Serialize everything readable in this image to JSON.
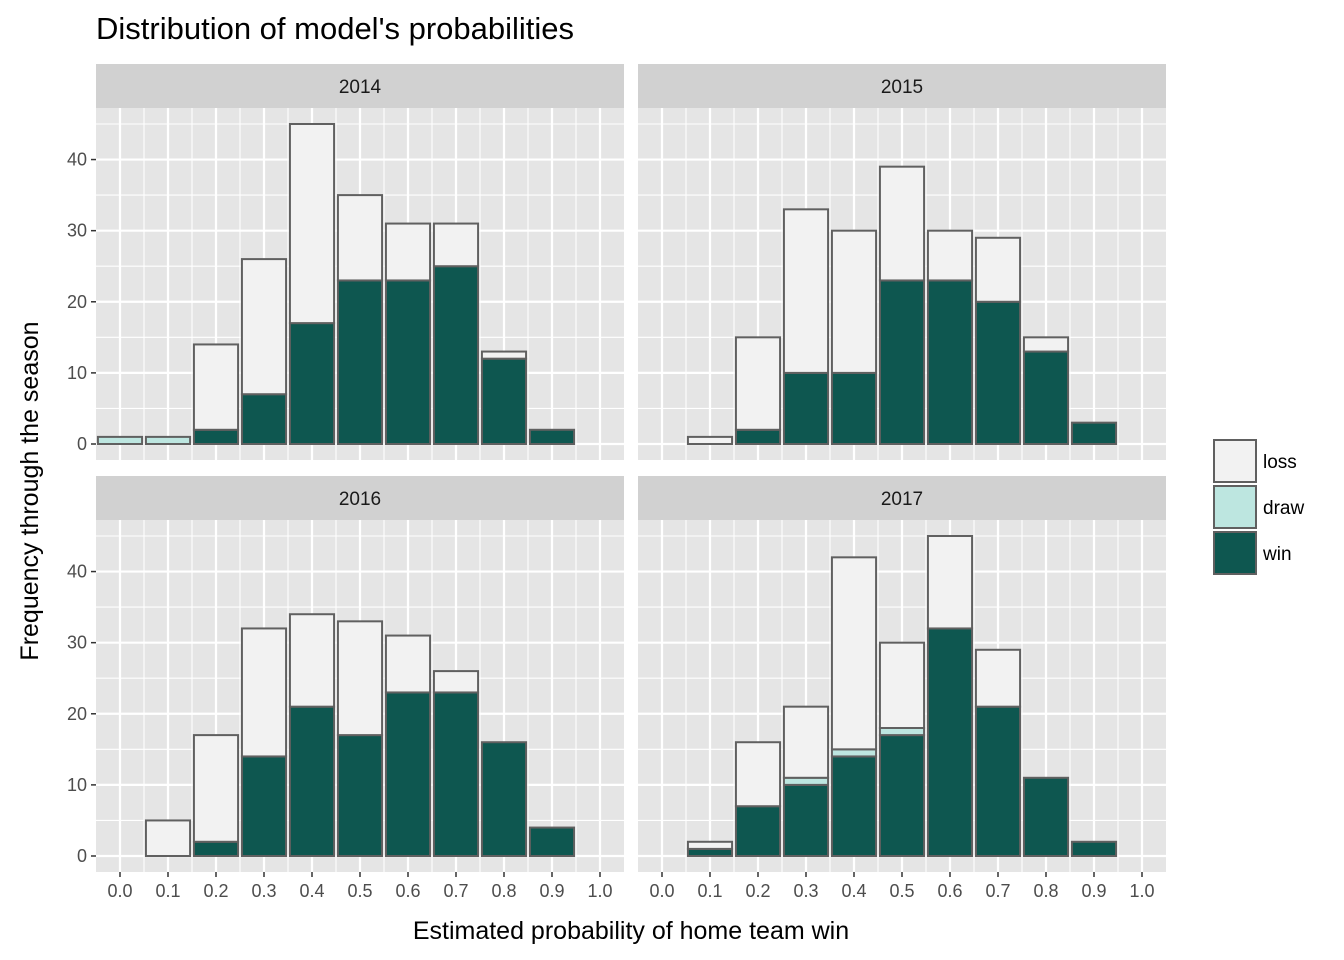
{
  "chart_data": {
    "type": "bar",
    "stacked": true,
    "title": "Distribution of model's probabilities",
    "xlabel": "Estimated probability of home team win",
    "ylabel": "Frequency through the season",
    "x_ticks": [
      "0.0",
      "0.1",
      "0.2",
      "0.3",
      "0.4",
      "0.5",
      "0.6",
      "0.7",
      "0.8",
      "0.9",
      "1.0"
    ],
    "y_ticks": [
      "0",
      "10",
      "20",
      "30",
      "40"
    ],
    "xlim": [
      -0.05,
      1.05
    ],
    "ylim": [
      -2.25,
      47.25
    ],
    "bin_width": 0.1,
    "grid": true,
    "legend_position": "right",
    "legend": [
      {
        "key": "loss",
        "label": "loss",
        "color": "#f2f2f2"
      },
      {
        "key": "draw",
        "label": "draw",
        "color": "#bde6e0"
      },
      {
        "key": "win",
        "label": "win",
        "color": "#0e5750"
      }
    ],
    "panels": [
      {
        "label": "2014",
        "bins": [
          {
            "x": 0.0,
            "win": 0,
            "draw": 1,
            "loss": 0
          },
          {
            "x": 0.1,
            "win": 0,
            "draw": 1,
            "loss": 0
          },
          {
            "x": 0.2,
            "win": 2,
            "draw": 0,
            "loss": 12
          },
          {
            "x": 0.3,
            "win": 7,
            "draw": 0,
            "loss": 19
          },
          {
            "x": 0.4,
            "win": 17,
            "draw": 0,
            "loss": 28
          },
          {
            "x": 0.5,
            "win": 23,
            "draw": 0,
            "loss": 12
          },
          {
            "x": 0.6,
            "win": 23,
            "draw": 0,
            "loss": 8
          },
          {
            "x": 0.7,
            "win": 25,
            "draw": 0,
            "loss": 6
          },
          {
            "x": 0.8,
            "win": 12,
            "draw": 0,
            "loss": 1
          },
          {
            "x": 0.9,
            "win": 2,
            "draw": 0,
            "loss": 0
          }
        ]
      },
      {
        "label": "2015",
        "bins": [
          {
            "x": 0.1,
            "win": 0,
            "draw": 0,
            "loss": 1
          },
          {
            "x": 0.2,
            "win": 2,
            "draw": 0,
            "loss": 13
          },
          {
            "x": 0.3,
            "win": 10,
            "draw": 0,
            "loss": 23
          },
          {
            "x": 0.4,
            "win": 10,
            "draw": 0,
            "loss": 20
          },
          {
            "x": 0.5,
            "win": 23,
            "draw": 0,
            "loss": 16
          },
          {
            "x": 0.6,
            "win": 23,
            "draw": 0,
            "loss": 7
          },
          {
            "x": 0.7,
            "win": 20,
            "draw": 0,
            "loss": 9
          },
          {
            "x": 0.8,
            "win": 13,
            "draw": 0,
            "loss": 2
          },
          {
            "x": 0.9,
            "win": 3,
            "draw": 0,
            "loss": 0
          }
        ]
      },
      {
        "label": "2016",
        "bins": [
          {
            "x": 0.1,
            "win": 0,
            "draw": 0,
            "loss": 5
          },
          {
            "x": 0.2,
            "win": 2,
            "draw": 0,
            "loss": 15
          },
          {
            "x": 0.3,
            "win": 14,
            "draw": 0,
            "loss": 18
          },
          {
            "x": 0.4,
            "win": 21,
            "draw": 0,
            "loss": 13
          },
          {
            "x": 0.5,
            "win": 17,
            "draw": 0,
            "loss": 16
          },
          {
            "x": 0.6,
            "win": 23,
            "draw": 0,
            "loss": 8
          },
          {
            "x": 0.7,
            "win": 23,
            "draw": 0,
            "loss": 3
          },
          {
            "x": 0.8,
            "win": 16,
            "draw": 0,
            "loss": 0
          },
          {
            "x": 0.9,
            "win": 4,
            "draw": 0,
            "loss": 0
          }
        ]
      },
      {
        "label": "2017",
        "bins": [
          {
            "x": 0.1,
            "win": 1,
            "draw": 0,
            "loss": 1
          },
          {
            "x": 0.2,
            "win": 7,
            "draw": 0,
            "loss": 9
          },
          {
            "x": 0.3,
            "win": 10,
            "draw": 1,
            "loss": 10
          },
          {
            "x": 0.4,
            "win": 14,
            "draw": 1,
            "loss": 27
          },
          {
            "x": 0.5,
            "win": 17,
            "draw": 1,
            "loss": 12
          },
          {
            "x": 0.6,
            "win": 32,
            "draw": 0,
            "loss": 13
          },
          {
            "x": 0.7,
            "win": 21,
            "draw": 0,
            "loss": 8
          },
          {
            "x": 0.8,
            "win": 11,
            "draw": 0,
            "loss": 0
          },
          {
            "x": 0.9,
            "win": 2,
            "draw": 0,
            "loss": 0
          }
        ]
      }
    ]
  },
  "colors": {
    "panel_background": "#e5e5e5",
    "grid": "#ffffff",
    "strip_background": "#d1d1d1",
    "bar_outline": "#606060"
  }
}
